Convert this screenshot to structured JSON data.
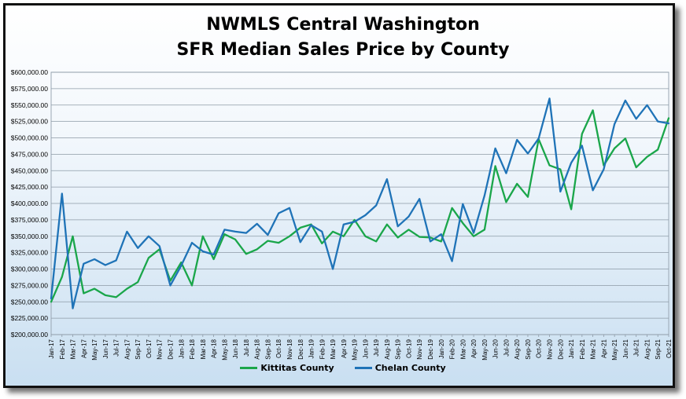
{
  "chart_data": {
    "type": "line",
    "title_line1": "NWMLS Central Washington",
    "title_line2": "SFR Median Sales Price by County",
    "ylim": [
      200000,
      600000
    ],
    "ytick_step": 25000,
    "y_tick_labels": [
      "$200,000.00",
      "$225,000.00",
      "$250,000.00",
      "$275,000.00",
      "$300,000.00",
      "$325,000.00",
      "$350,000.00",
      "$375,000.00",
      "$400,000.00",
      "$425,000.00",
      "$450,000.00",
      "$475,000.00",
      "$500,000.00",
      "$525,000.00",
      "$550,000.00",
      "$575,000.00",
      "$600,000.00"
    ],
    "grid": true,
    "legend_position": "bottom",
    "categories": [
      "Jan-17",
      "Feb-17",
      "Mar-17",
      "Apr-17",
      "May-17",
      "Jun-17",
      "Jul-17",
      "Aug-17",
      "Sep-17",
      "Oct-17",
      "Nov-17",
      "Dec-17",
      "Jan-18",
      "Feb-18",
      "Mar-18",
      "Apr-18",
      "May-18",
      "Jun-18",
      "Jul-18",
      "Aug-18",
      "Sep-18",
      "Oct-18",
      "Nov-18",
      "Dec-18",
      "Jan-19",
      "Feb-19",
      "Mar-19",
      "Apr-19",
      "May-19",
      "Jun-19",
      "Jul-19",
      "Aug-19",
      "Sep-19",
      "Oct-19",
      "Nov-19",
      "Dec-19",
      "Jan-20",
      "Feb-20",
      "Mar-20",
      "Apr-20",
      "May-20",
      "Jun-20",
      "Jul-20",
      "Aug-20",
      "Sep-20",
      "Oct-20",
      "Nov-20",
      "Dec-20",
      "Jan-21",
      "Feb-21",
      "Mar-21",
      "Apr-21",
      "May-21",
      "Jun-21",
      "Jul-21",
      "Aug-21",
      "Sep-21",
      "Oct-21"
    ],
    "series": [
      {
        "name": "Kittitas County",
        "color": "#1aa64a",
        "values": [
          250000,
          288000,
          350000,
          263000,
          270000,
          260000,
          257000,
          270000,
          280000,
          317000,
          330000,
          282000,
          310000,
          275000,
          350000,
          315000,
          353000,
          345000,
          323000,
          330000,
          343000,
          340000,
          350000,
          363000,
          368000,
          339000,
          357000,
          350000,
          375000,
          350000,
          342000,
          368000,
          348000,
          360000,
          349000,
          348000,
          342000,
          393000,
          370000,
          350000,
          360000,
          457000,
          402000,
          430000,
          410000,
          498000,
          458000,
          452000,
          391000,
          506000,
          542000,
          458000,
          484000,
          499000,
          455000,
          471000,
          482000,
          530000
        ]
      },
      {
        "name": "Chelan County",
        "color": "#1f73b7",
        "values": [
          255000,
          415000,
          240000,
          308000,
          315000,
          306000,
          313000,
          357000,
          332000,
          350000,
          335000,
          275000,
          305000,
          340000,
          327000,
          322000,
          360000,
          357000,
          355000,
          369000,
          352000,
          385000,
          393000,
          341000,
          367000,
          357000,
          300000,
          368000,
          372000,
          382000,
          397000,
          437000,
          365000,
          380000,
          407000,
          342000,
          353000,
          312000,
          399000,
          355000,
          412000,
          484000,
          446000,
          497000,
          476000,
          499000,
          560000,
          418000,
          462000,
          488000,
          420000,
          452000,
          521000,
          557000,
          529000,
          550000,
          525000,
          522000
        ]
      }
    ]
  }
}
